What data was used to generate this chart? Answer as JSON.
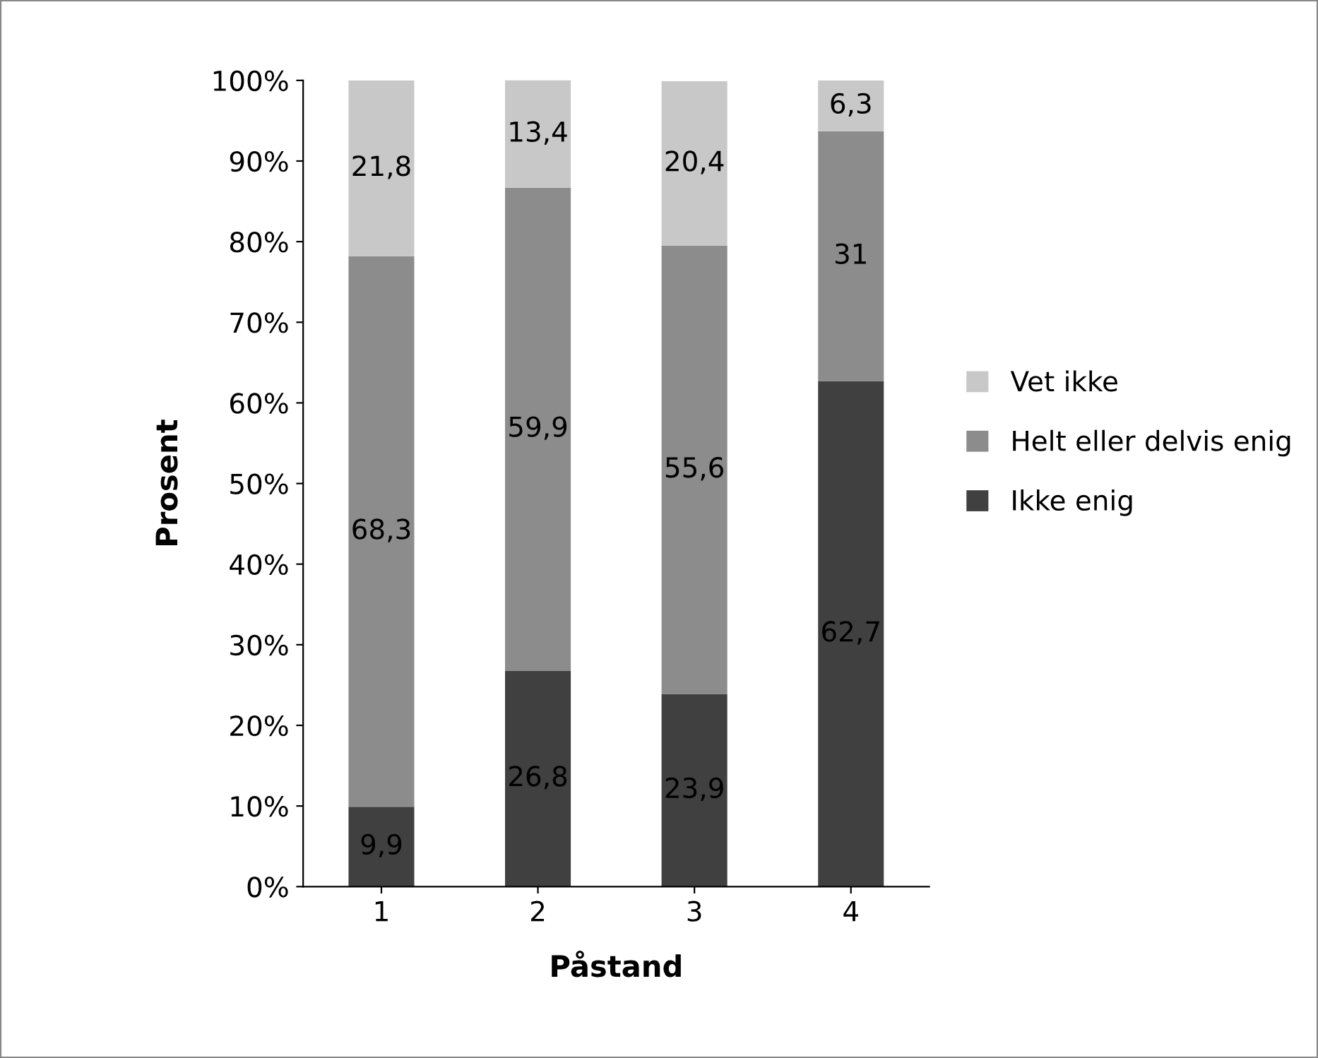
{
  "chart_data": {
    "type": "bar",
    "stacked": true,
    "xlabel": "Påstand",
    "ylabel": "Prosent",
    "categories": [
      "1",
      "2",
      "3",
      "4"
    ],
    "series": [
      {
        "name": "Ikke enig",
        "color": "#404040",
        "values": [
          9.9,
          26.8,
          23.9,
          62.7
        ],
        "value_labels": [
          "9,9",
          "26,8",
          "23,9",
          "62,7"
        ]
      },
      {
        "name": "Helt eller delvis enig",
        "color": "#8c8c8c",
        "values": [
          68.3,
          59.9,
          55.6,
          31
        ],
        "value_labels": [
          "68,3",
          "59,9",
          "55,6",
          "31"
        ]
      },
      {
        "name": "Vet ikke",
        "color": "#c8c8c8",
        "values": [
          21.8,
          13.4,
          20.4,
          6.3
        ],
        "value_labels": [
          "21,8",
          "13,4",
          "20,4",
          "6,3"
        ]
      }
    ],
    "ylim": [
      0,
      100
    ],
    "yticks": [
      {
        "value": 0,
        "label": "0%"
      },
      {
        "value": 10,
        "label": "10%"
      },
      {
        "value": 20,
        "label": "20%"
      },
      {
        "value": 30,
        "label": "30%"
      },
      {
        "value": 40,
        "label": "40%"
      },
      {
        "value": 50,
        "label": "50%"
      },
      {
        "value": 60,
        "label": "60%"
      },
      {
        "value": 70,
        "label": "70%"
      },
      {
        "value": 80,
        "label": "80%"
      },
      {
        "value": 90,
        "label": "90%"
      },
      {
        "value": 100,
        "label": "100%"
      }
    ],
    "grid": false,
    "legend": "right"
  }
}
